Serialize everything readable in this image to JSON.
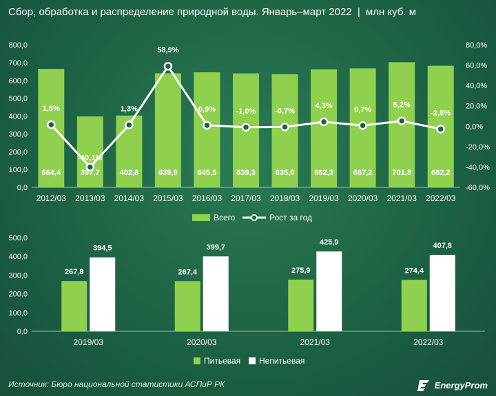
{
  "header": {
    "title": "Сбор, обработка и распределение природной воды. Январь–март 2022",
    "separator": "|",
    "unit": "млн куб. м"
  },
  "footer": {
    "source": "Источник: Бюро национальной статистики АСПиР РК",
    "logo_text": "EnergyProm",
    "logo_icon": "energyprom-logo-icon"
  },
  "colors": {
    "background": "#1d6244",
    "bar_green": "#8fd14f",
    "bar_white": "#ffffff",
    "line": "#ffffff"
  },
  "chart_data": [
    {
      "type": "bar",
      "categories": [
        "2012/03",
        "2013/03",
        "2014/03",
        "2015/03",
        "2016/03",
        "2017/03",
        "2018/03",
        "2019/03",
        "2020/03",
        "2021/03",
        "2022/03"
      ],
      "series": [
        {
          "name": "Всего",
          "type": "bar",
          "axis": "left",
          "values": [
            664.4,
            397.7,
            402.8,
            639.9,
            645.5,
            639.3,
            635.0,
            662.3,
            667.2,
            701.8,
            682.2
          ],
          "labels": [
            "664,4",
            "397,7",
            "402,8",
            "639,9",
            "645,5",
            "639,3",
            "635,0",
            "662,3",
            "667,2",
            "701,8",
            "682,2"
          ]
        },
        {
          "name": "Рост за год",
          "type": "line",
          "axis": "right",
          "values": [
            1.5,
            -40.1,
            1.3,
            58.9,
            0.9,
            -1.0,
            -0.7,
            4.3,
            0.7,
            5.2,
            -2.8
          ],
          "labels": [
            "1,5%",
            "-40,1%",
            "1,3%",
            "58,9%",
            "0,9%",
            "-1,0%",
            "-0,7%",
            "4,3%",
            "0,7%",
            "5,2%",
            "-2,8%"
          ]
        }
      ],
      "ylim": [
        0,
        800
      ],
      "yticks": [
        "0,0",
        "100,0",
        "200,0",
        "300,0",
        "400,0",
        "500,0",
        "600,0",
        "700,0",
        "800,0"
      ],
      "y2lim": [
        -60,
        80
      ],
      "y2ticks": [
        "-60,0%",
        "-40,0%",
        "-20,0%",
        "0,0%",
        "20,0%",
        "40,0%",
        "60,0%",
        "80,0%"
      ],
      "grid": false,
      "legend": "bottom"
    },
    {
      "type": "bar",
      "categories": [
        "2019/03",
        "2020/03",
        "2021/03",
        "2022/03"
      ],
      "series": [
        {
          "name": "Питьевая",
          "values": [
            267.8,
            267.4,
            275.9,
            274.4
          ],
          "labels": [
            "267,8",
            "267,4",
            "275,9",
            "274,4"
          ]
        },
        {
          "name": "Непитьевая",
          "values": [
            394.5,
            399.7,
            425.9,
            407.8
          ],
          "labels": [
            "394,5",
            "399,7",
            "425,9",
            "407,8"
          ]
        }
      ],
      "ylim": [
        0,
        500
      ],
      "yticks": [
        "0,0",
        "100,0",
        "200,0",
        "300,0",
        "400,0",
        "500,0"
      ],
      "grid": false,
      "legend": "bottom"
    }
  ]
}
